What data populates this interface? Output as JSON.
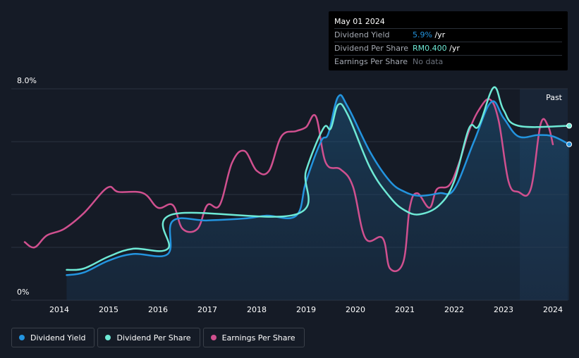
{
  "tooltip": {
    "date": "May 01 2024",
    "rows": [
      {
        "label": "Dividend Yield",
        "value": "5.9%",
        "unit": " /yr"
      },
      {
        "label": "Dividend Per Share",
        "value": "RM0.400",
        "unit": " /yr"
      },
      {
        "label": "Earnings Per Share",
        "value": "No data",
        "unit": ""
      }
    ]
  },
  "past_label": "Past",
  "legend": [
    {
      "label": "Dividend Yield",
      "color": "#2394df"
    },
    {
      "label": "Dividend Per Share",
      "color": "#6ee9d5"
    },
    {
      "label": "Earnings Per Share",
      "color": "#d0508f"
    }
  ],
  "colors": {
    "background": "#151b26",
    "yield": "#2394df",
    "dps": "#6ee9d5",
    "eps": "#d0508f",
    "grid": "#2c3340"
  },
  "chart_data": {
    "type": "line",
    "title": "",
    "xlabel": "",
    "ylabel": "",
    "ylim": [
      0,
      8.0
    ],
    "xlim": [
      2013.3,
      2024.33
    ],
    "y_tick_labels": [
      "8.0%",
      "0%"
    ],
    "x_ticks": [
      2014,
      2015,
      2016,
      2017,
      2018,
      2019,
      2020,
      2021,
      2022,
      2023,
      2024
    ],
    "x_tick_labels": [
      "2014",
      "2015",
      "2016",
      "2017",
      "2018",
      "2019",
      "2020",
      "2021",
      "2022",
      "2023",
      "2024"
    ],
    "past_region_start": 2023.33,
    "grid": true,
    "legend_position": "bottom-left",
    "series": [
      {
        "name": "Dividend Yield",
        "color": "#2394df",
        "points": [
          [
            2014.15,
            0.95
          ],
          [
            2014.5,
            1.05
          ],
          [
            2015.0,
            1.5
          ],
          [
            2015.5,
            1.75
          ],
          [
            2016.2,
            1.75
          ],
          [
            2016.3,
            3.0
          ],
          [
            2017.0,
            3.02
          ],
          [
            2017.8,
            3.1
          ],
          [
            2018.2,
            3.2
          ],
          [
            2018.8,
            3.2
          ],
          [
            2019.0,
            4.5
          ],
          [
            2019.3,
            6.0
          ],
          [
            2019.45,
            6.3
          ],
          [
            2019.65,
            7.7
          ],
          [
            2019.85,
            7.3
          ],
          [
            2020.3,
            5.6
          ],
          [
            2020.7,
            4.5
          ],
          [
            2021.0,
            4.1
          ],
          [
            2021.3,
            3.95
          ],
          [
            2021.7,
            4.05
          ],
          [
            2022.0,
            4.2
          ],
          [
            2022.4,
            6.0
          ],
          [
            2022.75,
            7.5
          ],
          [
            2023.0,
            6.9
          ],
          [
            2023.3,
            6.2
          ],
          [
            2023.7,
            6.25
          ],
          [
            2024.0,
            6.2
          ],
          [
            2024.33,
            5.9
          ]
        ]
      },
      {
        "name": "Dividend Per Share",
        "color": "#6ee9d5",
        "points": [
          [
            2014.15,
            1.15
          ],
          [
            2014.5,
            1.2
          ],
          [
            2015.0,
            1.65
          ],
          [
            2015.5,
            1.95
          ],
          [
            2016.2,
            1.95
          ],
          [
            2016.3,
            3.25
          ],
          [
            2018.8,
            3.25
          ],
          [
            2019.0,
            4.9
          ],
          [
            2019.35,
            6.5
          ],
          [
            2019.5,
            6.5
          ],
          [
            2019.65,
            7.4
          ],
          [
            2019.85,
            7.0
          ],
          [
            2020.3,
            5.0
          ],
          [
            2020.7,
            3.9
          ],
          [
            2021.0,
            3.4
          ],
          [
            2021.3,
            3.25
          ],
          [
            2021.7,
            3.6
          ],
          [
            2022.0,
            4.5
          ],
          [
            2022.3,
            6.5
          ],
          [
            2022.5,
            6.6
          ],
          [
            2022.8,
            8.05
          ],
          [
            2023.0,
            7.2
          ],
          [
            2023.3,
            6.6
          ],
          [
            2024.33,
            6.6
          ]
        ]
      },
      {
        "name": "Earnings Per Share",
        "color": "#d0508f",
        "points": [
          [
            2013.3,
            2.2
          ],
          [
            2013.5,
            2.0
          ],
          [
            2013.75,
            2.45
          ],
          [
            2014.1,
            2.7
          ],
          [
            2014.5,
            3.3
          ],
          [
            2014.97,
            4.25
          ],
          [
            2015.2,
            4.1
          ],
          [
            2015.7,
            4.05
          ],
          [
            2016.0,
            3.5
          ],
          [
            2016.3,
            3.6
          ],
          [
            2016.5,
            2.7
          ],
          [
            2016.8,
            2.7
          ],
          [
            2017.0,
            3.6
          ],
          [
            2017.25,
            3.6
          ],
          [
            2017.5,
            5.2
          ],
          [
            2017.75,
            5.65
          ],
          [
            2018.0,
            4.9
          ],
          [
            2018.25,
            4.9
          ],
          [
            2018.5,
            6.2
          ],
          [
            2018.8,
            6.4
          ],
          [
            2019.0,
            6.55
          ],
          [
            2019.2,
            6.95
          ],
          [
            2019.4,
            5.2
          ],
          [
            2019.7,
            4.95
          ],
          [
            2019.95,
            4.3
          ],
          [
            2020.2,
            2.35
          ],
          [
            2020.55,
            2.35
          ],
          [
            2020.7,
            1.2
          ],
          [
            2020.97,
            1.45
          ],
          [
            2021.1,
            3.5
          ],
          [
            2021.25,
            4.05
          ],
          [
            2021.5,
            3.5
          ],
          [
            2021.65,
            4.2
          ],
          [
            2021.9,
            4.35
          ],
          [
            2022.1,
            5.2
          ],
          [
            2022.3,
            6.4
          ],
          [
            2022.5,
            7.2
          ],
          [
            2022.72,
            7.6
          ],
          [
            2022.9,
            6.8
          ],
          [
            2023.1,
            4.5
          ],
          [
            2023.3,
            4.1
          ],
          [
            2023.55,
            4.2
          ],
          [
            2023.75,
            6.65
          ],
          [
            2023.9,
            6.6
          ],
          [
            2024.0,
            5.9
          ]
        ]
      }
    ]
  }
}
